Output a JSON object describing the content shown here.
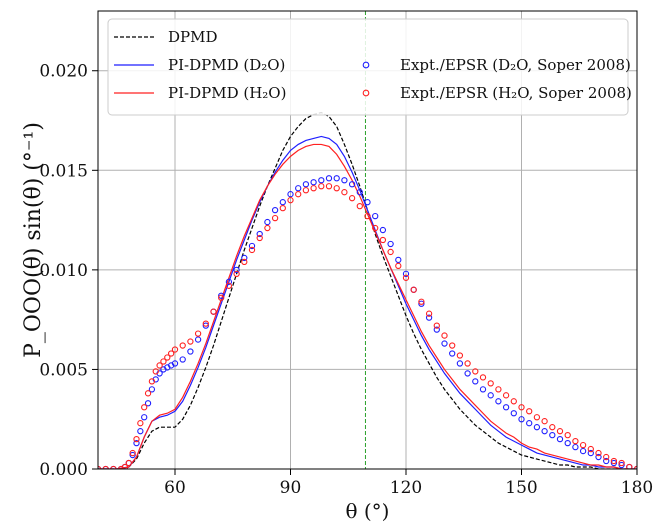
{
  "chart_data": {
    "type": "line",
    "xlabel": "θ (°)",
    "ylabel": "P_OOO(θ) sin(θ) (°⁻¹)",
    "xlim": [
      40,
      180
    ],
    "ylim": [
      0,
      0.023
    ],
    "xticks": [
      60,
      90,
      120,
      150,
      180
    ],
    "xtick_labels": [
      "60",
      "90",
      "120",
      "150",
      "180"
    ],
    "yticks": [
      0,
      0.005,
      0.01,
      0.015,
      0.02
    ],
    "ytick_labels": [
      "0.000",
      "0.005",
      "0.010",
      "0.015",
      "0.020"
    ],
    "grid": true,
    "legend_position": "top-left",
    "vline": {
      "x": 109.47,
      "color": "#2ca02c",
      "style": "dashed"
    },
    "series": [
      {
        "name": "DPMD",
        "kind": "line",
        "color": "#000000",
        "dashed": true,
        "x": [
          40,
          45,
          48,
          50,
          52,
          54,
          56,
          58,
          60,
          62,
          64,
          66,
          68,
          70,
          72,
          74,
          76,
          78,
          80,
          82,
          84,
          86,
          88,
          90,
          92,
          94,
          96,
          98,
          100,
          102,
          104,
          106,
          108,
          110,
          112,
          114,
          116,
          118,
          120,
          122,
          124,
          126,
          128,
          130,
          132,
          134,
          136,
          138,
          140,
          142,
          144,
          146,
          148,
          150,
          152,
          154,
          156,
          158,
          160,
          162,
          164,
          166,
          168,
          170,
          172,
          174,
          176,
          178,
          180
        ],
        "y": [
          0,
          0,
          0.0001,
          0.0005,
          0.0013,
          0.0019,
          0.0021,
          0.0021,
          0.0021,
          0.0025,
          0.0032,
          0.0041,
          0.0051,
          0.0062,
          0.0074,
          0.0086,
          0.0098,
          0.011,
          0.0121,
          0.0132,
          0.0142,
          0.0151,
          0.016,
          0.0167,
          0.0172,
          0.0176,
          0.0178,
          0.0179,
          0.0177,
          0.0172,
          0.0163,
          0.0153,
          0.0142,
          0.013,
          0.0118,
          0.0107,
          0.0097,
          0.0087,
          0.0077,
          0.0068,
          0.006,
          0.0053,
          0.0046,
          0.004,
          0.0035,
          0.003,
          0.0026,
          0.0022,
          0.0019,
          0.0016,
          0.0013,
          0.0011,
          0.0009,
          0.0007,
          0.0006,
          0.0005,
          0.0004,
          0.0003,
          0.0002,
          0.0002,
          0.0001,
          0.0001,
          0.0001,
          0,
          0,
          0,
          0,
          0,
          0
        ]
      },
      {
        "name": "PI-DPMD (D₂O)",
        "kind": "line",
        "color": "#1f1fff",
        "dashed": false,
        "x": [
          40,
          45,
          48,
          50,
          52,
          54,
          56,
          58,
          60,
          62,
          64,
          66,
          68,
          70,
          72,
          74,
          76,
          78,
          80,
          82,
          84,
          86,
          88,
          90,
          92,
          94,
          96,
          98,
          100,
          102,
          104,
          106,
          108,
          110,
          112,
          114,
          116,
          118,
          120,
          122,
          124,
          126,
          128,
          130,
          132,
          134,
          136,
          138,
          140,
          142,
          144,
          146,
          148,
          150,
          152,
          154,
          156,
          158,
          160,
          162,
          164,
          166,
          168,
          170,
          172,
          174,
          176,
          178,
          180
        ],
        "y": [
          0,
          0,
          0.0001,
          0.0006,
          0.0016,
          0.0024,
          0.0026,
          0.0027,
          0.0029,
          0.0034,
          0.0042,
          0.0051,
          0.0061,
          0.0072,
          0.0083,
          0.0094,
          0.0105,
          0.0115,
          0.0125,
          0.0134,
          0.0142,
          0.0149,
          0.0155,
          0.016,
          0.0163,
          0.0165,
          0.0166,
          0.0167,
          0.0166,
          0.0163,
          0.0157,
          0.0149,
          0.014,
          0.013,
          0.012,
          0.011,
          0.0101,
          0.0092,
          0.0083,
          0.0075,
          0.0067,
          0.006,
          0.0054,
          0.0048,
          0.0043,
          0.0038,
          0.0034,
          0.003,
          0.0026,
          0.0022,
          0.0019,
          0.0016,
          0.0014,
          0.0012,
          0.001,
          0.0008,
          0.0007,
          0.0006,
          0.0005,
          0.0004,
          0.0003,
          0.0002,
          0.0002,
          0.0001,
          0.0001,
          0.0001,
          0,
          0,
          0
        ]
      },
      {
        "name": "PI-DPMD (H₂O)",
        "kind": "line",
        "color": "#ff2020",
        "dashed": false,
        "x": [
          40,
          45,
          48,
          50,
          52,
          54,
          56,
          58,
          60,
          62,
          64,
          66,
          68,
          70,
          72,
          74,
          76,
          78,
          80,
          82,
          84,
          86,
          88,
          90,
          92,
          94,
          96,
          98,
          100,
          102,
          104,
          106,
          108,
          110,
          112,
          114,
          116,
          118,
          120,
          122,
          124,
          126,
          128,
          130,
          132,
          134,
          136,
          138,
          140,
          142,
          144,
          146,
          148,
          150,
          152,
          154,
          156,
          158,
          160,
          162,
          164,
          166,
          168,
          170,
          172,
          174,
          176,
          178,
          180
        ],
        "y": [
          0,
          0,
          0.0001,
          0.0006,
          0.0016,
          0.0024,
          0.0027,
          0.0028,
          0.003,
          0.0036,
          0.0044,
          0.0053,
          0.0063,
          0.0074,
          0.0085,
          0.0096,
          0.0107,
          0.0117,
          0.0126,
          0.0135,
          0.0142,
          0.0148,
          0.0153,
          0.0157,
          0.016,
          0.0162,
          0.0163,
          0.0163,
          0.0162,
          0.0158,
          0.0152,
          0.0145,
          0.0137,
          0.0128,
          0.0119,
          0.011,
          0.0101,
          0.0093,
          0.0085,
          0.0077,
          0.0069,
          0.0062,
          0.0056,
          0.005,
          0.0045,
          0.004,
          0.0036,
          0.0032,
          0.0028,
          0.0024,
          0.0021,
          0.0018,
          0.0016,
          0.0013,
          0.0011,
          0.001,
          0.0008,
          0.0007,
          0.0006,
          0.0005,
          0.0004,
          0.0003,
          0.0002,
          0.0002,
          0.0001,
          0.0001,
          0,
          0,
          0
        ]
      },
      {
        "name": "Expt./EPSR (D₂O, Soper 2008)",
        "kind": "scatter",
        "color": "#1f1fff",
        "x": [
          40,
          42,
          44,
          46,
          47,
          48,
          49,
          50,
          51,
          52,
          53,
          54,
          55,
          56,
          57,
          58,
          59,
          60,
          62,
          64,
          66,
          68,
          70,
          72,
          74,
          76,
          78,
          80,
          82,
          84,
          86,
          88,
          90,
          92,
          94,
          96,
          98,
          100,
          102,
          104,
          106,
          108,
          110,
          112,
          114,
          116,
          118,
          120,
          122,
          124,
          126,
          128,
          130,
          132,
          134,
          136,
          138,
          140,
          142,
          144,
          146,
          148,
          150,
          152,
          154,
          156,
          158,
          160,
          162,
          164,
          166,
          168,
          170,
          172,
          174,
          176,
          178,
          180
        ],
        "y": [
          0,
          0,
          0,
          0,
          0.0001,
          0.0003,
          0.0007,
          0.0013,
          0.0019,
          0.0026,
          0.0033,
          0.004,
          0.0045,
          0.0048,
          0.005,
          0.0051,
          0.0052,
          0.0053,
          0.0055,
          0.0059,
          0.0065,
          0.0072,
          0.0079,
          0.0087,
          0.0094,
          0.01,
          0.0106,
          0.0112,
          0.0118,
          0.0124,
          0.013,
          0.0134,
          0.0138,
          0.0141,
          0.0143,
          0.0144,
          0.0145,
          0.0146,
          0.0146,
          0.0145,
          0.0143,
          0.0139,
          0.0134,
          0.0127,
          0.012,
          0.0113,
          0.0105,
          0.0098,
          0.009,
          0.0083,
          0.0076,
          0.007,
          0.0063,
          0.0058,
          0.0053,
          0.0048,
          0.0044,
          0.004,
          0.0037,
          0.0034,
          0.0031,
          0.0028,
          0.0025,
          0.0023,
          0.0021,
          0.0019,
          0.0017,
          0.0015,
          0.0013,
          0.0011,
          0.0009,
          0.0008,
          0.0006,
          0.0004,
          0.0003,
          0.0002,
          0.0001,
          0
        ]
      },
      {
        "name": "Expt./EPSR (H₂O, Soper 2008)",
        "kind": "scatter",
        "color": "#ff2020",
        "x": [
          40,
          42,
          44,
          46,
          47,
          48,
          49,
          50,
          51,
          52,
          53,
          54,
          55,
          56,
          57,
          58,
          59,
          60,
          62,
          64,
          66,
          68,
          70,
          72,
          74,
          76,
          78,
          80,
          82,
          84,
          86,
          88,
          90,
          92,
          94,
          96,
          98,
          100,
          102,
          104,
          106,
          108,
          110,
          112,
          114,
          116,
          118,
          120,
          122,
          124,
          126,
          128,
          130,
          132,
          134,
          136,
          138,
          140,
          142,
          144,
          146,
          148,
          150,
          152,
          154,
          156,
          158,
          160,
          162,
          164,
          166,
          168,
          170,
          172,
          174,
          176,
          178,
          180
        ],
        "y": [
          0,
          0,
          0,
          0,
          0.0001,
          0.0003,
          0.0008,
          0.0015,
          0.0023,
          0.0031,
          0.0038,
          0.0044,
          0.0049,
          0.0052,
          0.0054,
          0.0056,
          0.0058,
          0.006,
          0.0062,
          0.0064,
          0.0068,
          0.0073,
          0.0079,
          0.0086,
          0.0092,
          0.0098,
          0.0104,
          0.011,
          0.0116,
          0.0121,
          0.0126,
          0.0131,
          0.0135,
          0.0138,
          0.014,
          0.0141,
          0.0142,
          0.0142,
          0.0141,
          0.0139,
          0.0136,
          0.0132,
          0.0127,
          0.0121,
          0.0115,
          0.0109,
          0.0102,
          0.0096,
          0.009,
          0.0084,
          0.0078,
          0.0072,
          0.0067,
          0.0062,
          0.0057,
          0.0053,
          0.0049,
          0.0046,
          0.0043,
          0.004,
          0.0037,
          0.0034,
          0.0031,
          0.0029,
          0.0026,
          0.0024,
          0.0021,
          0.0019,
          0.0017,
          0.0014,
          0.0012,
          0.001,
          0.0008,
          0.0006,
          0.0004,
          0.0003,
          0.0001,
          0
        ]
      }
    ]
  }
}
